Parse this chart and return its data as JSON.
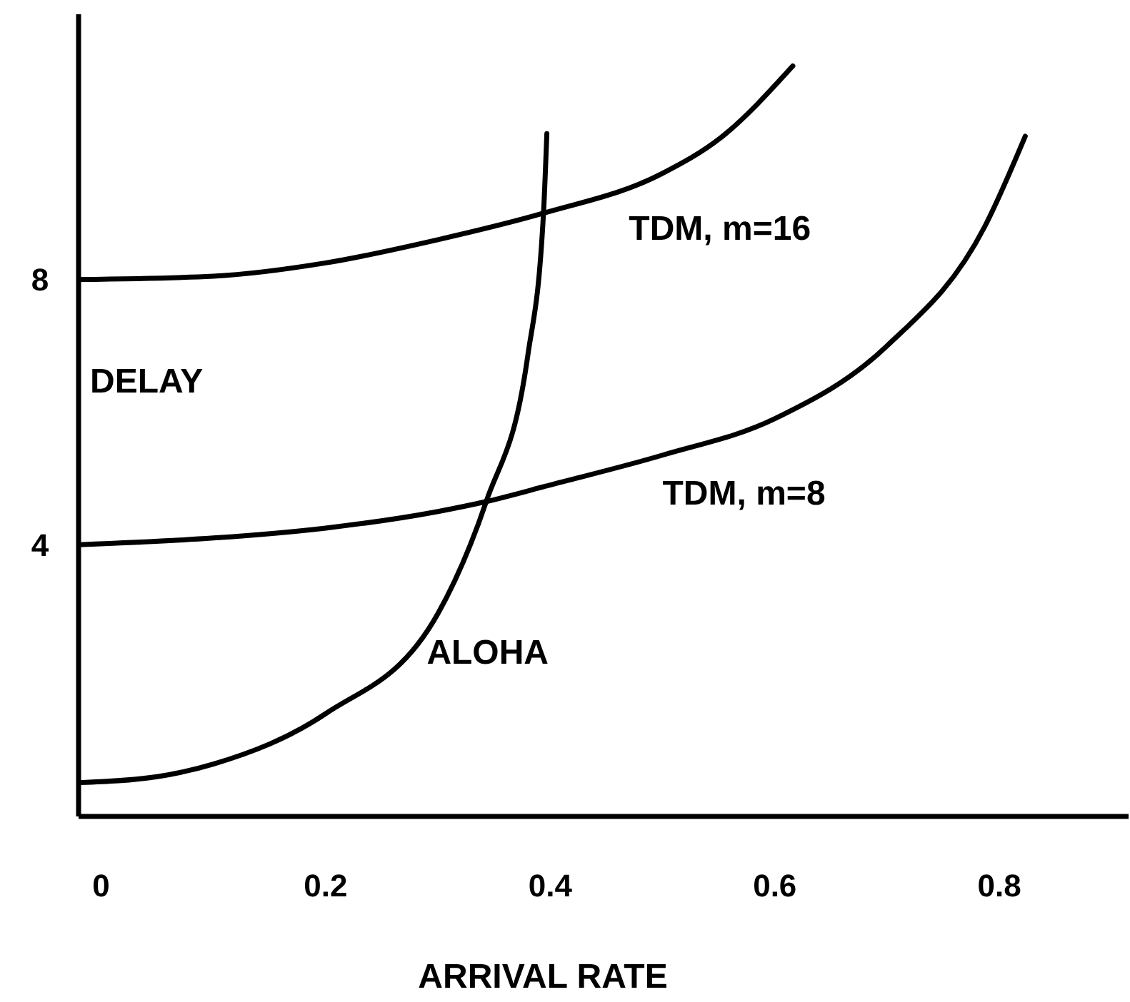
{
  "chart_data": {
    "type": "line",
    "xlabel": "ARRIVAL RATE",
    "ylabel": "DELAY",
    "xlim": [
      -0.02,
      0.915
    ],
    "ylim": [
      -0.1,
      12
    ],
    "xticks": [
      0,
      0.2,
      0.4,
      0.6,
      0.8
    ],
    "yticks": [
      4,
      8
    ],
    "grid": false,
    "marker": "none",
    "line_style": "solid",
    "series": [
      {
        "name": "TDM, m=16",
        "color": "#000000",
        "x": [
          -0.019,
          0.1,
          0.2,
          0.3,
          0.394,
          0.5,
          0.552,
          0.616
        ],
        "values": [
          8.0,
          8.05,
          8.25,
          8.6,
          9.0,
          9.6,
          10.14,
          11.22
        ]
      },
      {
        "name": "TDM, m=8",
        "color": "#000000",
        "x": [
          -0.019,
          0.1,
          0.2,
          0.3,
          0.343,
          0.4,
          0.5,
          0.6,
          0.7,
          0.787,
          0.823
        ],
        "values": [
          4.0,
          4.1,
          4.25,
          4.5,
          4.65,
          4.9,
          5.35,
          5.9,
          7.0,
          8.8,
          10.16
        ]
      },
      {
        "name": "ALOHA",
        "color": "#000000",
        "x": [
          -0.019,
          0.05,
          0.1,
          0.2,
          0.3,
          0.343,
          0.38,
          0.394,
          0.397
        ],
        "values": [
          0.41,
          0.5,
          0.69,
          1.45,
          2.96,
          4.65,
          6.85,
          9.0,
          10.2
        ]
      }
    ]
  }
}
